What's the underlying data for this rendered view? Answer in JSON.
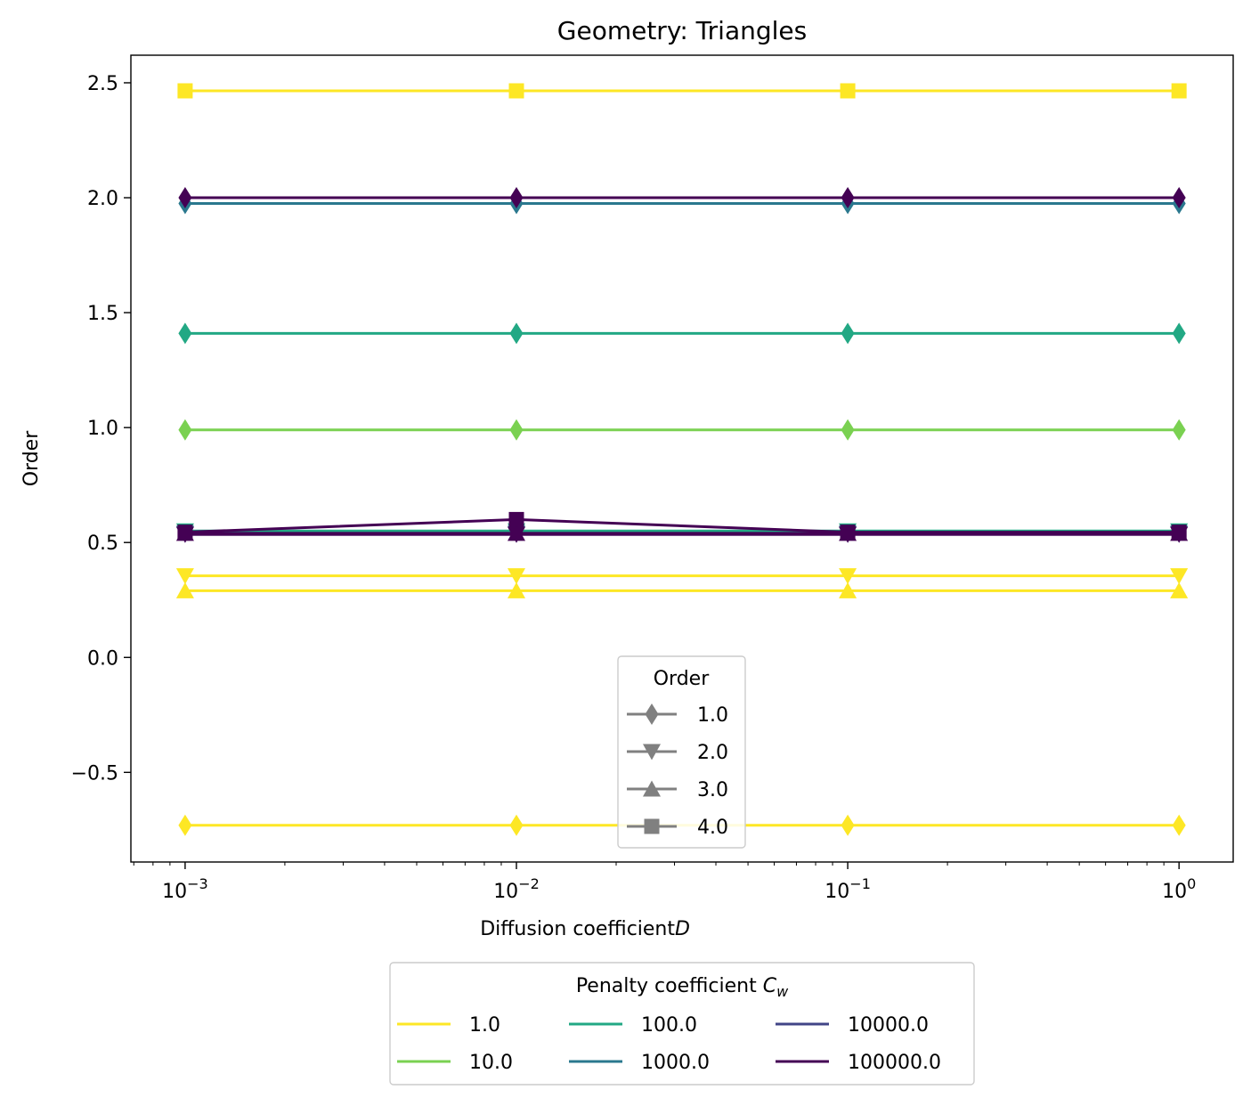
{
  "chart_data": {
    "type": "line",
    "title": "Geometry: Triangles",
    "xlabel": "Diffusion coefficient D",
    "ylabel": "Order",
    "xscale": "log",
    "x": [
      0.001,
      0.01,
      0.1,
      1
    ],
    "x_tick_labels": [
      {
        "base": "10",
        "exp": "−3"
      },
      {
        "base": "10",
        "exp": "−2"
      },
      {
        "base": "10",
        "exp": "−1"
      },
      {
        "base": "10",
        "exp": "0"
      }
    ],
    "y_ticks": [
      -0.5,
      0.0,
      0.5,
      1.0,
      1.5,
      2.0,
      2.5
    ],
    "y_tick_labels": [
      "−0.5",
      "0.0",
      "0.5",
      "1.0",
      "1.5",
      "2.0",
      "2.5"
    ],
    "xlim": [
      0.000686,
      1.457
    ],
    "ylim": [
      -0.89,
      2.62
    ],
    "grid": false,
    "order_legend": {
      "title": "Order",
      "placement": "lower-center",
      "entries": [
        {
          "label": "1.0",
          "marker": "diamond"
        },
        {
          "label": "2.0",
          "marker": "triangle-down"
        },
        {
          "label": "3.0",
          "marker": "triangle-up"
        },
        {
          "label": "4.0",
          "marker": "square"
        }
      ]
    },
    "penalty_legend": {
      "title": "Penalty coefficient C",
      "title_sub": "w",
      "placement": "below-plot",
      "columns": 3,
      "entries": [
        {
          "label": "1.0",
          "color": "#fde725"
        },
        {
          "label": "10.0",
          "color": "#7ad151"
        },
        {
          "label": "100.0",
          "color": "#22a884"
        },
        {
          "label": "1000.0",
          "color": "#2a788e"
        },
        {
          "label": "10000.0",
          "color": "#414487"
        },
        {
          "label": "100000.0",
          "color": "#440154"
        }
      ]
    },
    "series": [
      {
        "penalty": "1.0",
        "order": "1.0",
        "marker": "diamond",
        "color": "#fde725",
        "values": [
          -0.73,
          -0.73,
          -0.73,
          -0.73
        ]
      },
      {
        "penalty": "1.0",
        "order": "2.0",
        "marker": "triangle-down",
        "color": "#fde725",
        "values": [
          0.355,
          0.355,
          0.355,
          0.355
        ]
      },
      {
        "penalty": "1.0",
        "order": "3.0",
        "marker": "triangle-up",
        "color": "#fde725",
        "values": [
          0.29,
          0.29,
          0.29,
          0.29
        ]
      },
      {
        "penalty": "1.0",
        "order": "4.0",
        "marker": "square",
        "color": "#fde725",
        "values": [
          2.465,
          2.465,
          2.465,
          2.465
        ]
      },
      {
        "penalty": "10.0",
        "order": "1.0",
        "marker": "diamond",
        "color": "#7ad151",
        "values": [
          0.99,
          0.99,
          0.99,
          0.99
        ]
      },
      {
        "penalty": "100.0",
        "order": "1.0",
        "marker": "diamond",
        "color": "#22a884",
        "values": [
          1.41,
          1.41,
          1.41,
          1.41
        ]
      },
      {
        "penalty": "100.0",
        "order": "2.0",
        "marker": "triangle-down",
        "color": "#22a884",
        "values": [
          0.55,
          0.55,
          0.55,
          0.55
        ]
      },
      {
        "penalty": "1000.0",
        "order": "1.0",
        "marker": "diamond",
        "color": "#2a788e",
        "values": [
          1.975,
          1.975,
          1.975,
          1.975
        ]
      },
      {
        "penalty": "1000.0",
        "order": "2.0",
        "marker": "triangle-down",
        "color": "#2a788e",
        "values": [
          0.54,
          0.54,
          0.54,
          0.54
        ]
      },
      {
        "penalty": "10000.0",
        "order": "2.0",
        "marker": "triangle-down",
        "color": "#414487",
        "values": [
          0.535,
          0.535,
          0.535,
          0.535
        ]
      },
      {
        "penalty": "100000.0",
        "order": "1.0",
        "marker": "diamond",
        "color": "#440154",
        "values": [
          2.0,
          2.0,
          2.0,
          2.0
        ]
      },
      {
        "penalty": "100000.0",
        "order": "2.0",
        "marker": "triangle-down",
        "color": "#440154",
        "values": [
          0.535,
          0.535,
          0.535,
          0.535
        ]
      },
      {
        "penalty": "100000.0",
        "order": "3.0",
        "marker": "triangle-up",
        "color": "#440154",
        "values": [
          0.54,
          0.54,
          0.54,
          0.54
        ]
      },
      {
        "penalty": "100000.0",
        "order": "4.0",
        "marker": "square",
        "color": "#440154",
        "values": [
          0.545,
          0.6,
          0.545,
          0.545
        ]
      }
    ]
  }
}
